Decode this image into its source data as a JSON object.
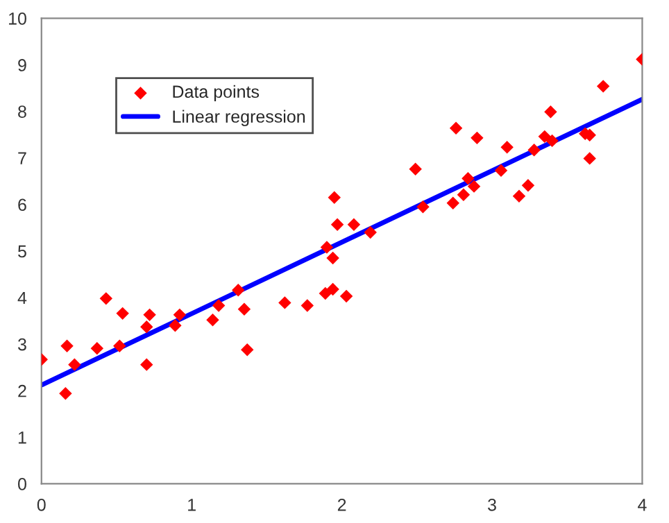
{
  "chart_data": {
    "type": "scatter",
    "xlim": [
      0,
      4
    ],
    "ylim": [
      0,
      10
    ],
    "xticks": [
      0,
      1,
      2,
      3,
      4
    ],
    "yticks": [
      0,
      1,
      2,
      3,
      4,
      5,
      6,
      7,
      8,
      9,
      10
    ],
    "grid": false,
    "legend": "top left",
    "series": [
      {
        "name": "Data points",
        "color": "#ff0000",
        "marker": "diamond",
        "x": [
          0,
          0.17,
          0.16,
          0.22,
          0.37,
          0.43,
          0.52,
          0.54,
          0.7,
          0.72,
          0.7,
          0.89,
          0.92,
          1.14,
          1.18,
          1.31,
          1.35,
          1.37,
          1.62,
          1.77,
          1.89,
          1.94,
          1.9,
          1.94,
          1.95,
          1.97,
          2.03,
          2.08,
          2.19,
          2.49,
          2.54,
          2.74,
          2.76,
          2.81,
          2.84,
          2.88,
          2.9,
          3.06,
          3.1,
          3.18,
          3.24,
          3.28,
          3.35,
          3.39,
          3.4,
          3.62,
          3.65,
          3.65,
          3.74,
          4.0
        ],
        "values": [
          2.67,
          2.96,
          1.94,
          2.56,
          2.91,
          3.98,
          2.96,
          3.66,
          3.37,
          3.63,
          2.56,
          3.4,
          3.63,
          3.52,
          3.83,
          4.16,
          3.75,
          2.88,
          3.89,
          3.83,
          4.09,
          4.18,
          5.08,
          4.85,
          6.15,
          5.57,
          4.03,
          5.57,
          5.4,
          6.76,
          5.95,
          6.03,
          7.64,
          6.21,
          6.56,
          6.39,
          7.43,
          6.73,
          7.23,
          6.18,
          6.41,
          7.17,
          7.46,
          7.99,
          7.37,
          7.52,
          7.49,
          6.99,
          8.54,
          9.12
        ]
      },
      {
        "name": "Linear regression",
        "type": "line",
        "color": "#0000ff",
        "marker": "none",
        "line_style": "solid",
        "x": [
          0,
          4
        ],
        "values": [
          2.12,
          8.26
        ]
      }
    ]
  }
}
